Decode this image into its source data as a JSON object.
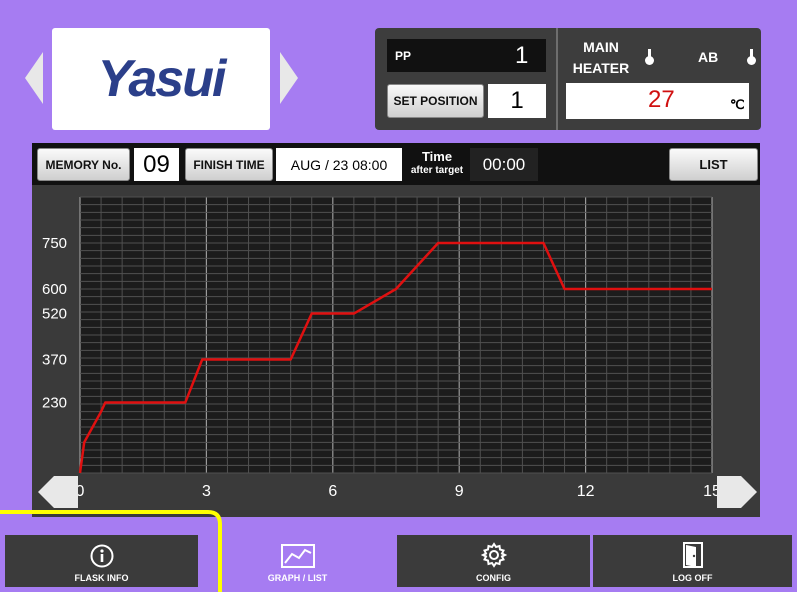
{
  "logo": {
    "text": "Yasui"
  },
  "header": {
    "pp_label": "PP",
    "pp_value": "1",
    "set_position_label": "SET POSITION",
    "set_position_value": "1",
    "main_heater_label_1": "MAIN",
    "main_heater_label_2": "HEATER",
    "ab_label": "AB",
    "temperature_value": "27",
    "temperature_unit": "℃"
  },
  "toolbar": {
    "memory_label": "MEMORY No.",
    "memory_value": "09",
    "finish_time_label": "FINISH TIME",
    "finish_time_value": "AUG / 23 08:00",
    "time_label_1": "Time",
    "time_label_2": "after target",
    "time_value": "00:00",
    "list_label": "LIST"
  },
  "tabs": [
    {
      "label": "FLASK INFO",
      "icon": "info-icon"
    },
    {
      "label": "GRAPH / LIST",
      "icon": "graph-icon"
    },
    {
      "label": "CONFIG",
      "icon": "gear-icon"
    },
    {
      "label": "LOG OFF",
      "icon": "door-icon"
    }
  ],
  "chart_data": {
    "type": "line",
    "x_ticks": [
      "0",
      "3",
      "6",
      "9",
      "12",
      "15"
    ],
    "y_ticks": [
      "230",
      "370",
      "520",
      "600",
      "750"
    ],
    "xlim": [
      0,
      15
    ],
    "ylim": [
      0,
      900
    ],
    "grid": true,
    "line_color": "#e01010",
    "series": [
      {
        "x": [
          0,
          0.1,
          0.3,
          0.5,
          0.6,
          2.5,
          2.9,
          5.0,
          5.5,
          6.5,
          7.5,
          8.5,
          11.0,
          11.5,
          15.0
        ],
        "y": [
          0,
          100,
          150,
          200,
          230,
          230,
          370,
          370,
          520,
          520,
          600,
          750,
          750,
          600,
          600
        ]
      }
    ]
  },
  "colors": {
    "background": "#a67cf2",
    "highlight_outline": "#ffff00"
  }
}
